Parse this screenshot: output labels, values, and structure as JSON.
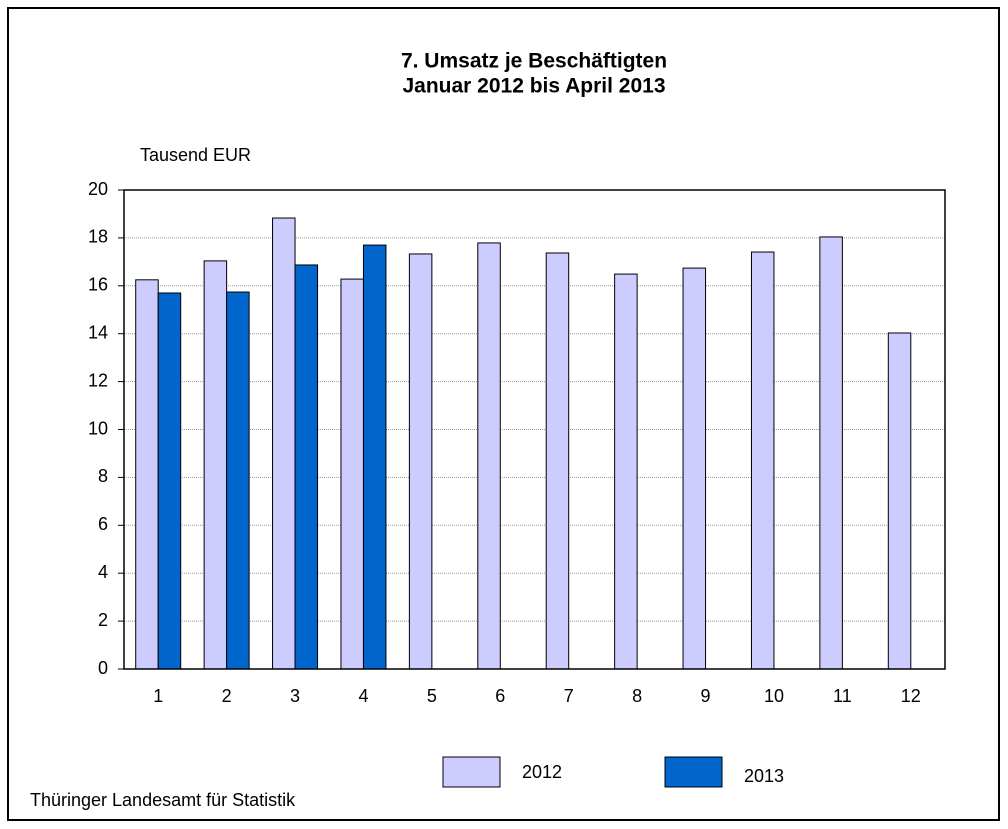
{
  "chart_data": {
    "type": "bar",
    "title": "7. Umsatz je Beschäftigten",
    "subtitle": "Januar 2012 bis April 2013",
    "y_axis_label": "Tausend EUR",
    "source": "Thüringer Landesamt für Statistik",
    "categories": [
      "1",
      "2",
      "3",
      "4",
      "5",
      "6",
      "7",
      "8",
      "9",
      "10",
      "11",
      "12"
    ],
    "series": [
      {
        "name": "2012",
        "color": "#ccccff",
        "values": [
          16.25,
          17.04,
          18.83,
          16.28,
          17.33,
          17.79,
          17.37,
          16.49,
          16.74,
          17.41,
          18.04,
          14.03
        ]
      },
      {
        "name": "2013",
        "color": "#0066cc",
        "values": [
          15.7,
          15.74,
          16.87,
          17.7,
          null,
          null,
          null,
          null,
          null,
          null,
          null,
          null
        ]
      }
    ],
    "ylim": [
      0,
      20
    ],
    "yticks": [
      0,
      2,
      4,
      6,
      8,
      10,
      12,
      14,
      16,
      18,
      20
    ],
    "grid": true
  }
}
